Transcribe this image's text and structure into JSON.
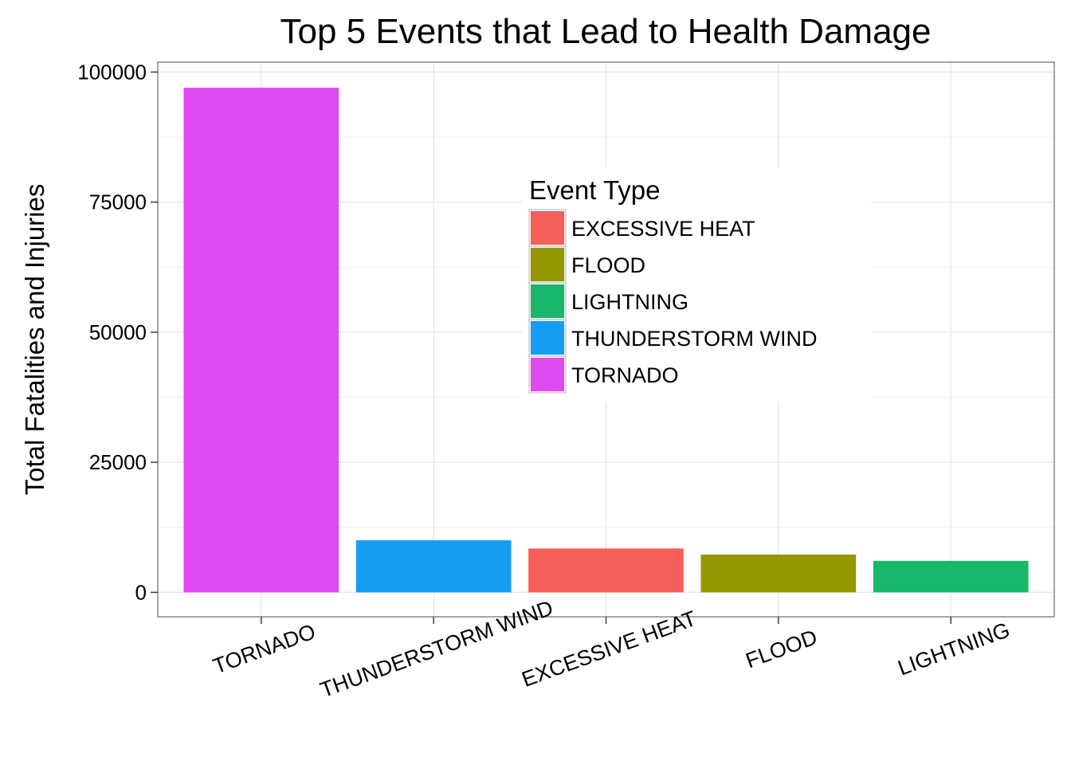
{
  "chart_data": {
    "type": "bar",
    "title": "Top 5 Events that Lead to Health Damage",
    "xlabel": "",
    "ylabel": "Total Fatalities and Injuries",
    "categories": [
      "TORNADO",
      "THUNDERSTORM WIND",
      "EXCESSIVE HEAT",
      "FLOOD",
      "LIGHTNING"
    ],
    "values": [
      96979,
      10000,
      8428,
      7259,
      6046
    ],
    "ylim": [
      -4700,
      101900
    ],
    "yticks": [
      0,
      25000,
      50000,
      75000,
      100000
    ],
    "ytick_labels": [
      "0",
      "25000",
      "50000",
      "75000",
      "100000"
    ],
    "grid": true,
    "x_tick_rotation_deg": -20,
    "legend": {
      "title": "Event Type",
      "placement": "inside-center-right",
      "entries": [
        {
          "label": "EXCESSIVE HEAT",
          "color": "#F45F5A"
        },
        {
          "label": "FLOOD",
          "color": "#939800"
        },
        {
          "label": "LIGHTNING",
          "color": "#18B76A"
        },
        {
          "label": "THUNDERSTORM WIND",
          "color": "#149DF2"
        },
        {
          "label": "TORNADO",
          "color": "#DE49F0"
        }
      ]
    },
    "category_colors": {
      "TORNADO": "#DE49F0",
      "THUNDERSTORM WIND": "#149DF2",
      "EXCESSIVE HEAT": "#F45F5A",
      "FLOOD": "#939800",
      "LIGHTNING": "#18B76A"
    }
  }
}
